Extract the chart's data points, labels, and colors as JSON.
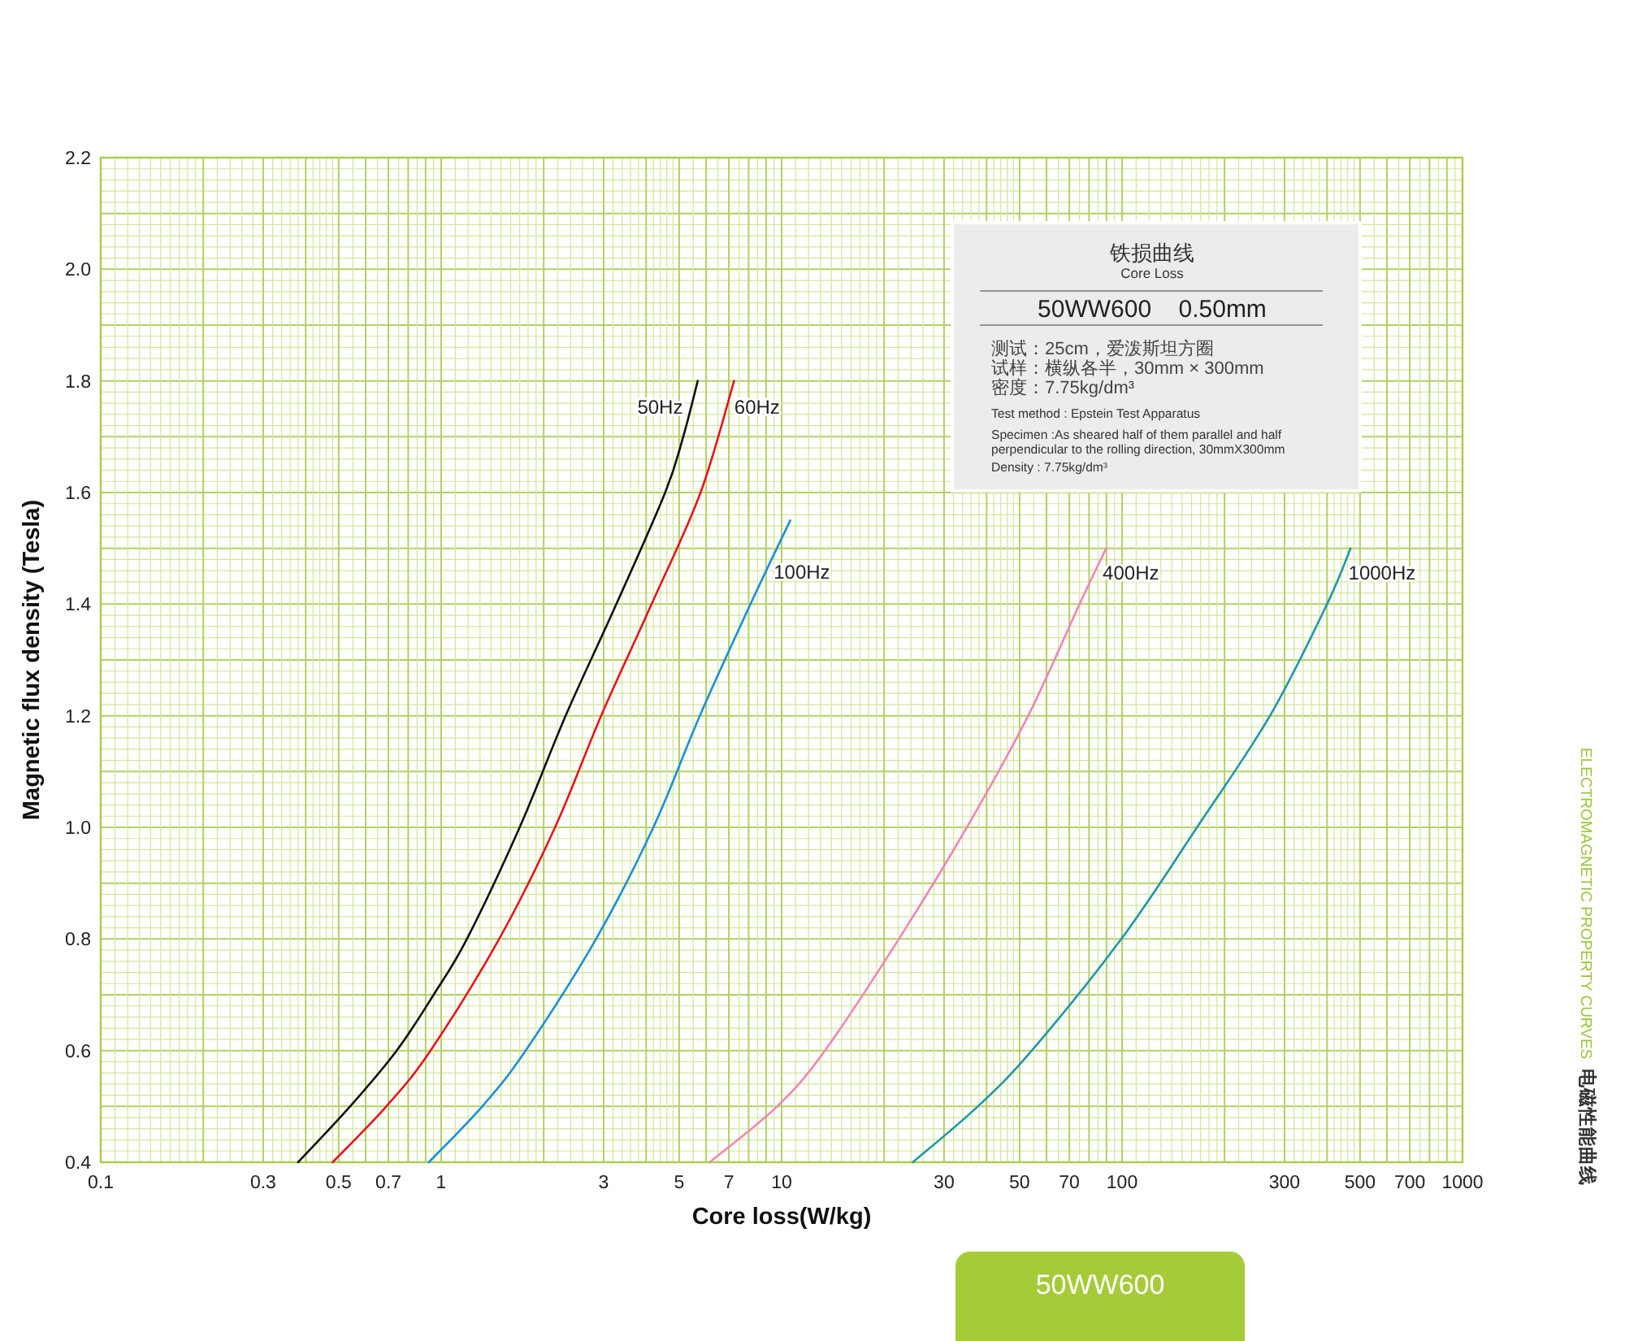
{
  "chart_data": {
    "type": "line",
    "title": "铁损曲线",
    "subtitle": "Core Loss",
    "xlabel": "Core loss(W/kg)",
    "ylabel": "Magnetic flux density (Tesla)",
    "log": "x",
    "grid": true,
    "xlim": [
      0.1,
      1000
    ],
    "ylim": [
      0.4,
      2.2
    ],
    "xticks": [
      0.1,
      {
        "value": 0.11,
        "label": null
      },
      {
        "value": 0.12,
        "label": null
      },
      {
        "value": 0.13,
        "label": null
      },
      {
        "value": 0.14,
        "label": null
      },
      {
        "value": 0.15,
        "label": null
      },
      {
        "value": 0.16,
        "label": null
      },
      {
        "value": 0.17,
        "label": null
      },
      {
        "value": 0.18,
        "label": null
      },
      {
        "value": 0.19,
        "label": null
      },
      {
        "value": 0.2,
        "label": null
      },
      {
        "value": 0.22,
        "label": null
      },
      {
        "value": 0.24,
        "label": null
      },
      {
        "value": 0.26,
        "label": null
      },
      {
        "value": 0.28,
        "label": null
      },
      0.3,
      {
        "value": 0.32,
        "label": null
      },
      {
        "value": 0.34,
        "label": null
      },
      {
        "value": 0.36,
        "label": null
      },
      {
        "value": 0.38,
        "label": null
      },
      {
        "value": 0.4,
        "label": null
      },
      {
        "value": 0.42,
        "label": null
      },
      {
        "value": 0.44,
        "label": null
      },
      {
        "value": 0.46,
        "label": null
      },
      {
        "value": 0.48,
        "label": null
      },
      0.5,
      {
        "value": 0.55,
        "label": null
      },
      {
        "value": 0.6,
        "label": null
      },
      {
        "value": 0.65,
        "label": null
      },
      0.7,
      {
        "value": 0.75,
        "label": null
      },
      {
        "value": 0.8,
        "label": null
      },
      {
        "value": 0.85,
        "label": null
      },
      {
        "value": 0.9,
        "label": null
      },
      {
        "value": 0.95,
        "label": null
      },
      1,
      {
        "value": 1.1,
        "label": null
      },
      {
        "value": 1.2,
        "label": null
      },
      {
        "value": 1.3,
        "label": null
      },
      {
        "value": 1.4,
        "label": null
      },
      {
        "value": 1.5,
        "label": null
      },
      {
        "value": 1.6,
        "label": null
      },
      {
        "value": 1.7,
        "label": null
      },
      {
        "value": 1.8,
        "label": null
      },
      {
        "value": 1.9,
        "label": null
      },
      {
        "value": 2,
        "label": null
      },
      {
        "value": 2.2,
        "label": null
      },
      {
        "value": 2.4,
        "label": null
      },
      {
        "value": 2.6,
        "label": null
      },
      {
        "value": 2.8,
        "label": null
      },
      3,
      {
        "value": 3.2,
        "label": null
      },
      {
        "value": 3.4,
        "label": null
      },
      {
        "value": 3.6,
        "label": null
      },
      {
        "value": 3.8,
        "label": null
      },
      {
        "value": 4,
        "label": null
      },
      {
        "value": 4.2,
        "label": null
      },
      {
        "value": 4.4,
        "label": null
      },
      {
        "value": 4.6,
        "label": null
      },
      {
        "value": 4.8,
        "label": null
      },
      5,
      {
        "value": 5.5,
        "label": null
      },
      {
        "value": 6,
        "label": null
      },
      {
        "value": 6.5,
        "label": null
      },
      7,
      {
        "value": 7.5,
        "label": null
      },
      {
        "value": 8,
        "label": null
      },
      {
        "value": 8.5,
        "label": null
      },
      {
        "value": 9,
        "label": null
      },
      {
        "value": 9.5,
        "label": null
      },
      10,
      {
        "value": 11,
        "label": null
      },
      {
        "value": 12,
        "label": null
      },
      {
        "value": 13,
        "label": null
      },
      {
        "value": 14,
        "label": null
      },
      {
        "value": 15,
        "label": null
      },
      {
        "value": 16,
        "label": null
      },
      {
        "value": 17,
        "label": null
      },
      {
        "value": 18,
        "label": null
      },
      {
        "value": 19,
        "label": null
      },
      {
        "value": 20,
        "label": null
      },
      {
        "value": 22,
        "label": null
      },
      {
        "value": 24,
        "label": null
      },
      {
        "value": 26,
        "label": null
      },
      {
        "value": 28,
        "label": null
      },
      30,
      {
        "value": 32,
        "label": null
      },
      {
        "value": 34,
        "label": null
      },
      {
        "value": 36,
        "label": null
      },
      {
        "value": 38,
        "label": null
      },
      {
        "value": 40,
        "label": null
      },
      {
        "value": 42,
        "label": null
      },
      {
        "value": 44,
        "label": null
      },
      {
        "value": 46,
        "label": null
      },
      {
        "value": 48,
        "label": null
      },
      50,
      {
        "value": 55,
        "label": null
      },
      {
        "value": 60,
        "label": null
      },
      {
        "value": 65,
        "label": null
      },
      70,
      {
        "value": 75,
        "label": null
      },
      {
        "value": 80,
        "label": null
      },
      {
        "value": 85,
        "label": null
      },
      {
        "value": 90,
        "label": null
      },
      {
        "value": 95,
        "label": null
      },
      100,
      {
        "value": 110,
        "label": null
      },
      {
        "value": 120,
        "label": null
      },
      {
        "value": 130,
        "label": null
      },
      {
        "value": 140,
        "label": null
      },
      {
        "value": 150,
        "label": null
      },
      {
        "value": 160,
        "label": null
      },
      {
        "value": 170,
        "label": null
      },
      {
        "value": 180,
        "label": null
      },
      {
        "value": 190,
        "label": null
      },
      {
        "value": 200,
        "label": null
      },
      {
        "value": 220,
        "label": null
      },
      {
        "value": 240,
        "label": null
      },
      {
        "value": 260,
        "label": null
      },
      {
        "value": 280,
        "label": null
      },
      300,
      {
        "value": 320,
        "label": null
      },
      {
        "value": 340,
        "label": null
      },
      {
        "value": 360,
        "label": null
      },
      {
        "value": 380,
        "label": null
      },
      {
        "value": 400,
        "label": null
      },
      {
        "value": 420,
        "label": null
      },
      {
        "value": 440,
        "label": null
      },
      {
        "value": 460,
        "label": null
      },
      {
        "value": 480,
        "label": null
      },
      500,
      {
        "value": 550,
        "label": null
      },
      {
        "value": 600,
        "label": null
      },
      {
        "value": 650,
        "label": null
      },
      700,
      {
        "value": 750,
        "label": null
      },
      {
        "value": 800,
        "label": null
      },
      {
        "value": 850,
        "label": null
      },
      {
        "value": 900,
        "label": null
      },
      {
        "value": 950,
        "label": null
      },
      1000
    ],
    "yticks": [
      0.4,
      {
        "value": 0.42,
        "label": null
      },
      {
        "value": 0.44,
        "label": null
      },
      {
        "value": 0.46,
        "label": null
      },
      {
        "value": 0.48,
        "label": null
      },
      {
        "value": 0.5,
        "label": null
      },
      {
        "value": 0.52,
        "label": null
      },
      {
        "value": 0.54,
        "label": null
      },
      {
        "value": 0.56,
        "label": null
      },
      {
        "value": 0.58,
        "label": null
      },
      0.6,
      {
        "value": 0.62,
        "label": null
      },
      {
        "value": 0.64,
        "label": null
      },
      {
        "value": 0.66,
        "label": null
      },
      {
        "value": 0.68,
        "label": null
      },
      {
        "value": 0.7,
        "label": null
      },
      {
        "value": 0.72,
        "label": null
      },
      {
        "value": 0.74,
        "label": null
      },
      {
        "value": 0.76,
        "label": null
      },
      {
        "value": 0.78,
        "label": null
      },
      0.8,
      {
        "value": 0.82,
        "label": null
      },
      {
        "value": 0.84,
        "label": null
      },
      {
        "value": 0.86,
        "label": null
      },
      {
        "value": 0.88,
        "label": null
      },
      {
        "value": 0.9,
        "label": null
      },
      {
        "value": 0.92,
        "label": null
      },
      {
        "value": 0.94,
        "label": null
      },
      {
        "value": 0.96,
        "label": null
      },
      {
        "value": 0.98,
        "label": null
      },
      {
        "value": 1,
        "label": "1.0"
      },
      {
        "value": 1.02,
        "label": null
      },
      {
        "value": 1.04,
        "label": null
      },
      {
        "value": 1.06,
        "label": null
      },
      {
        "value": 1.08,
        "label": null
      },
      {
        "value": 1.1,
        "label": null
      },
      {
        "value": 1.12,
        "label": null
      },
      {
        "value": 1.14,
        "label": null
      },
      {
        "value": 1.16,
        "label": null
      },
      {
        "value": 1.18,
        "label": null
      },
      1.2,
      {
        "value": 1.22,
        "label": null
      },
      {
        "value": 1.24,
        "label": null
      },
      {
        "value": 1.26,
        "label": null
      },
      {
        "value": 1.28,
        "label": null
      },
      {
        "value": 1.3,
        "label": null
      },
      {
        "value": 1.32,
        "label": null
      },
      {
        "value": 1.34,
        "label": null
      },
      {
        "value": 1.36,
        "label": null
      },
      {
        "value": 1.38,
        "label": null
      },
      1.4,
      {
        "value": 1.42,
        "label": null
      },
      {
        "value": 1.44,
        "label": null
      },
      {
        "value": 1.46,
        "label": null
      },
      {
        "value": 1.48,
        "label": null
      },
      {
        "value": 1.5,
        "label": null
      },
      {
        "value": 1.52,
        "label": null
      },
      {
        "value": 1.54,
        "label": null
      },
      {
        "value": 1.56,
        "label": null
      },
      {
        "value": 1.58,
        "label": null
      },
      1.6,
      {
        "value": 1.62,
        "label": null
      },
      {
        "value": 1.64,
        "label": null
      },
      {
        "value": 1.66,
        "label": null
      },
      {
        "value": 1.68,
        "label": null
      },
      {
        "value": 1.7,
        "label": null
      },
      {
        "value": 1.72,
        "label": null
      },
      {
        "value": 1.74,
        "label": null
      },
      {
        "value": 1.76,
        "label": null
      },
      {
        "value": 1.78,
        "label": null
      },
      1.8,
      {
        "value": 1.82,
        "label": null
      },
      {
        "value": 1.84,
        "label": null
      },
      {
        "value": 1.86,
        "label": null
      },
      {
        "value": 1.88,
        "label": null
      },
      {
        "value": 1.9,
        "label": null
      },
      {
        "value": 1.92,
        "label": null
      },
      {
        "value": 1.94,
        "label": null
      },
      {
        "value": 1.96,
        "label": null
      },
      {
        "value": 1.98,
        "label": null
      },
      {
        "value": 2,
        "label": "2.0"
      },
      {
        "value": 2.02,
        "label": null
      },
      {
        "value": 2.04,
        "label": null
      },
      {
        "value": 2.06,
        "label": null
      },
      {
        "value": 2.08,
        "label": null
      },
      {
        "value": 2.1,
        "label": null
      },
      {
        "value": 2.12,
        "label": null
      },
      {
        "value": 2.14,
        "label": null
      },
      {
        "value": 2.16,
        "label": null
      },
      {
        "value": 2.18,
        "label": null
      },
      2.2
    ],
    "series": [
      {
        "name": "50Hz",
        "color": "#111111",
        "x": [
          0.38,
          0.54,
          0.74,
          0.95,
          1.19,
          1.7,
          2.32,
          3.27,
          4.55,
          5.14,
          5.67
        ],
        "values": [
          0.4,
          0.5,
          0.6,
          0.7,
          0.8,
          1.0,
          1.2,
          1.4,
          1.6,
          1.7,
          1.8
        ]
      },
      {
        "name": "60Hz",
        "color": "#e3161e",
        "x": [
          0.48,
          0.69,
          0.93,
          1.48,
          2.16,
          2.95,
          4.15,
          5.78,
          7.25
        ],
        "values": [
          0.4,
          0.5,
          0.6,
          0.8,
          1.0,
          1.2,
          1.4,
          1.6,
          1.8
        ]
      },
      {
        "name": "100Hz",
        "color": "#1b8fd8",
        "x": [
          0.92,
          1.32,
          1.77,
          2.85,
          4.2,
          5.75,
          8.1,
          10.6
        ],
        "values": [
          0.4,
          0.5,
          0.6,
          0.8,
          1.0,
          1.2,
          1.4,
          1.55
        ]
      },
      {
        "name": "400Hz",
        "color": "#ee86b6",
        "x": [
          6.15,
          9.7,
          13.4,
          22.1,
          35,
          53,
          75,
          89.8
        ],
        "values": [
          0.4,
          0.5,
          0.6,
          0.8,
          1.0,
          1.2,
          1.4,
          1.5
        ]
      },
      {
        "name": "1000Hz",
        "color": "#2096aa",
        "x": [
          24.3,
          37.7,
          54.3,
          99.5,
          166,
          272,
          400,
          469
        ],
        "values": [
          0.4,
          0.5,
          0.6,
          0.8,
          1.0,
          1.2,
          1.4,
          1.5
        ]
      }
    ],
    "annotations": [
      "50WW600    0.50mm",
      "测试：25cm，爱泼斯坦方圈",
      "试样：横纵各半，30mm × 300mm",
      "密度：7.75kg/dm³",
      "Test method : Epstein Test Apparatus",
      "Specimen :As sheared half of them parallel and half perpendicular to the rolling direction, 30mmX300mm",
      "Density : 7.75kg/dm³",
      "ELECTROMAGNETIC PROPERTY CURVES",
      "电磁性能曲线",
      "50WW600"
    ]
  }
}
